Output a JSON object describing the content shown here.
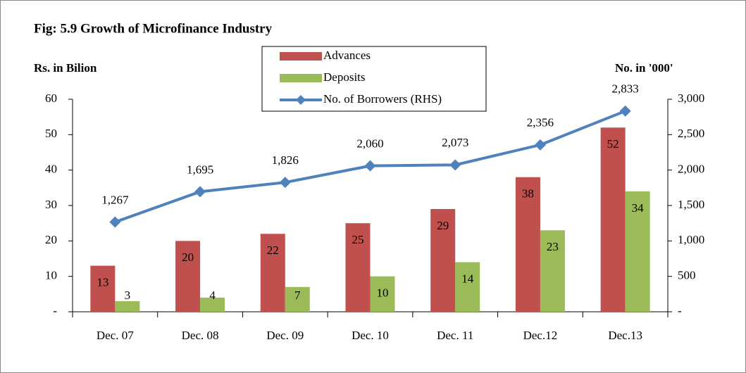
{
  "chart_data": {
    "type": "bar-line",
    "title": "Fig: 5.9 Growth of Microfinance Industry",
    "y_axis_label": "Rs. in Bilion",
    "y2_axis_label": "No. in '000'",
    "categories": [
      "Dec. 07",
      "Dec. 08",
      "Dec. 09",
      "Dec. 10",
      "Dec. 11",
      "Dec.12",
      "Dec.13"
    ],
    "series": [
      {
        "name": "Advances",
        "type": "bar",
        "color": "#c0504d",
        "values": [
          13,
          20,
          22,
          25,
          29,
          38,
          52
        ]
      },
      {
        "name": "Deposits",
        "type": "bar",
        "color": "#9bbb59",
        "values": [
          3,
          4,
          7,
          10,
          14,
          23,
          34
        ]
      },
      {
        "name": "No. of Borrowers (RHS)",
        "type": "line",
        "axis": "y2",
        "color": "#4f81bd",
        "values": [
          1267,
          1695,
          1826,
          2060,
          2073,
          2356,
          2833
        ],
        "value_labels": [
          "1,267",
          "1,695",
          "1,826",
          "2,060",
          "2,073",
          "2,356",
          "2,833"
        ]
      }
    ],
    "ylim": [
      0,
      60
    ],
    "yticks": [
      {
        "value": 0,
        "label": "-"
      },
      10,
      20,
      30,
      40,
      50,
      60
    ],
    "y2lim": [
      0,
      3000
    ],
    "y2ticks": [
      {
        "value": 0,
        "label": "-"
      },
      500,
      {
        "value": 1000,
        "label": "1,000"
      },
      {
        "value": 1500,
        "label": "1,500"
      },
      {
        "value": 2000,
        "label": "2,000"
      },
      {
        "value": 2500,
        "label": "2,500"
      },
      {
        "value": 3000,
        "label": "3,000"
      }
    ]
  }
}
